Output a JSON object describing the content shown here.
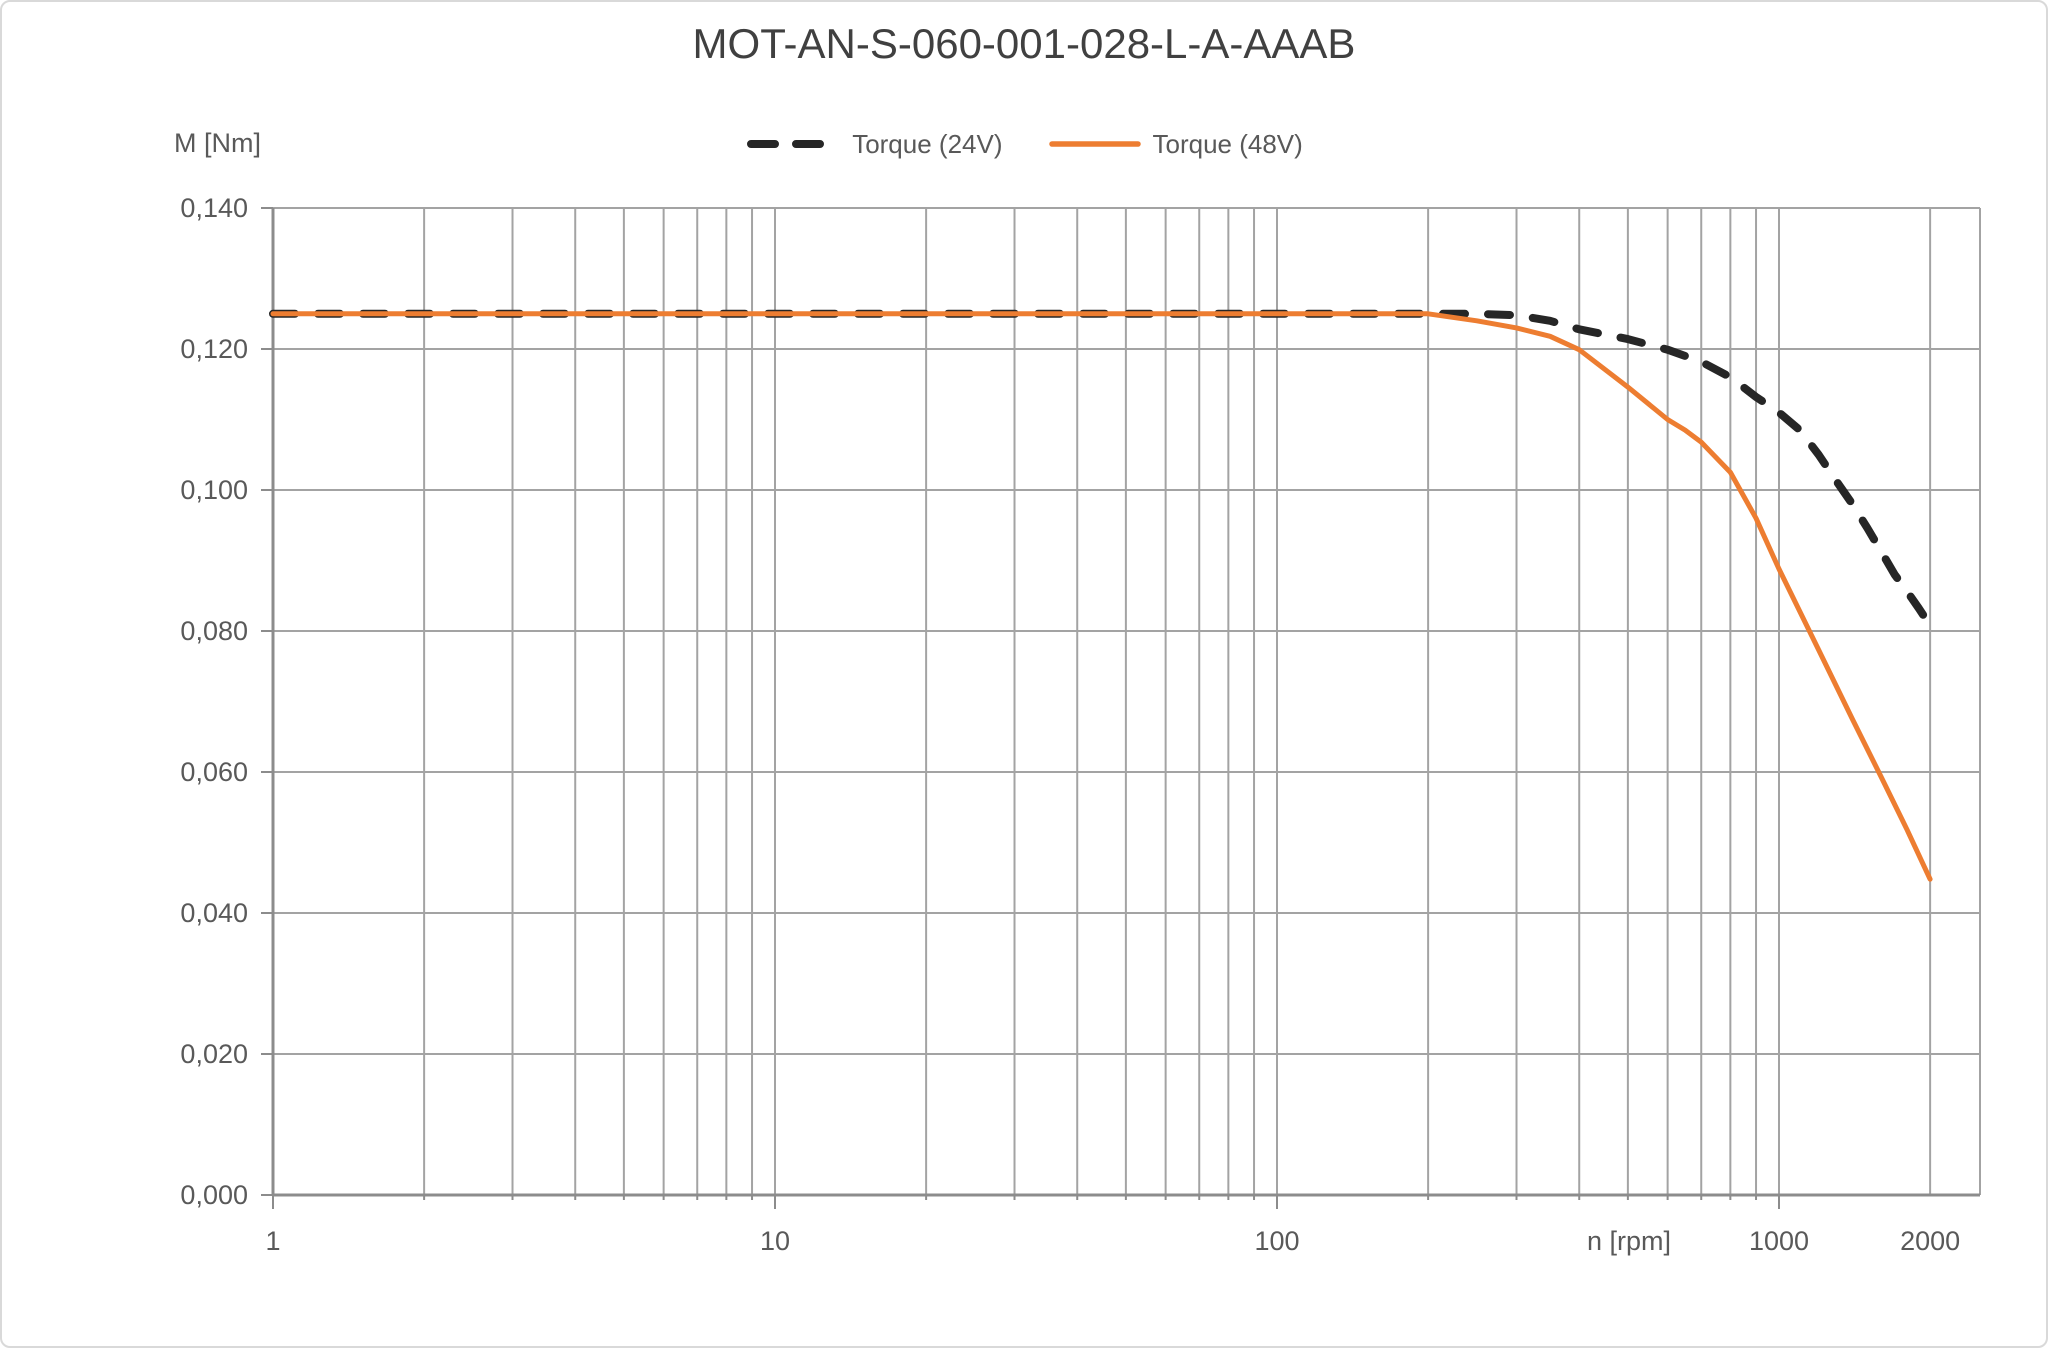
{
  "title": "MOT-AN-S-060-001-028-L-A-AAAB",
  "colors": {
    "background": "#ffffff",
    "border": "#d9d9d9",
    "gridline": "#a3a3a3",
    "axis": "#8c8c8c",
    "tick_text": "#595959",
    "title_text": "#404040",
    "torque_24v": "#262626",
    "torque_48v": "#ED7D31"
  },
  "chart_data": {
    "type": "line",
    "title": "MOT-AN-S-060-001-028-L-A-AAAB",
    "x_scale": "log",
    "xlabel": "n [rpm]",
    "ylabel": "M [Nm]",
    "xlim": [
      1,
      2500
    ],
    "ylim": [
      0.0,
      0.14
    ],
    "grid": true,
    "legend_position": "top-center",
    "x_ticks": [
      {
        "value": 1,
        "label": "1"
      },
      {
        "value": 10,
        "label": "10"
      },
      {
        "value": 100,
        "label": "100"
      },
      {
        "value": 1000,
        "label": "1000"
      },
      {
        "value": 2000,
        "label": "2000"
      }
    ],
    "y_ticks": [
      {
        "value": 0.14,
        "label": "0,140"
      },
      {
        "value": 0.12,
        "label": "0,120"
      },
      {
        "value": 0.1,
        "label": "0,100"
      },
      {
        "value": 0.08,
        "label": "0,080"
      },
      {
        "value": 0.06,
        "label": "0,060"
      },
      {
        "value": 0.04,
        "label": "0,040"
      },
      {
        "value": 0.02,
        "label": "0,020"
      },
      {
        "value": 0.0,
        "label": "0,000"
      }
    ],
    "series": [
      {
        "name": "Torque (24V)",
        "color": "#262626",
        "line_style": "dashed",
        "points": [
          [
            1,
            0.125
          ],
          [
            10,
            0.125
          ],
          [
            100,
            0.125
          ],
          [
            150,
            0.125
          ],
          [
            200,
            0.125
          ],
          [
            250,
            0.125
          ],
          [
            300,
            0.1248
          ],
          [
            350,
            0.124
          ],
          [
            400,
            0.1228
          ],
          [
            500,
            0.1214
          ],
          [
            600,
            0.1199
          ],
          [
            700,
            0.1182
          ],
          [
            800,
            0.116
          ],
          [
            900,
            0.1132
          ],
          [
            1000,
            0.111
          ],
          [
            1100,
            0.1085
          ],
          [
            1200,
            0.105
          ],
          [
            1300,
            0.1013
          ],
          [
            1400,
            0.098
          ],
          [
            1500,
            0.0946
          ],
          [
            1600,
            0.0912
          ],
          [
            1700,
            0.088
          ],
          [
            1800,
            0.0856
          ],
          [
            1900,
            0.0832
          ],
          [
            2000,
            0.0808
          ]
        ]
      },
      {
        "name": "Torque (48V)",
        "color": "#ED7D31",
        "line_style": "solid",
        "points": [
          [
            1,
            0.125
          ],
          [
            10,
            0.125
          ],
          [
            100,
            0.125
          ],
          [
            150,
            0.125
          ],
          [
            200,
            0.125
          ],
          [
            250,
            0.124
          ],
          [
            300,
            0.123
          ],
          [
            350,
            0.1218
          ],
          [
            400,
            0.1199
          ],
          [
            500,
            0.1146
          ],
          [
            600,
            0.11
          ],
          [
            650,
            0.1085
          ],
          [
            700,
            0.1068
          ],
          [
            800,
            0.1025
          ],
          [
            900,
            0.096
          ],
          [
            1000,
            0.0888
          ],
          [
            1200,
            0.0773
          ],
          [
            1400,
            0.0675
          ],
          [
            1600,
            0.0592
          ],
          [
            1800,
            0.0518
          ],
          [
            2000,
            0.0448
          ]
        ]
      }
    ]
  }
}
